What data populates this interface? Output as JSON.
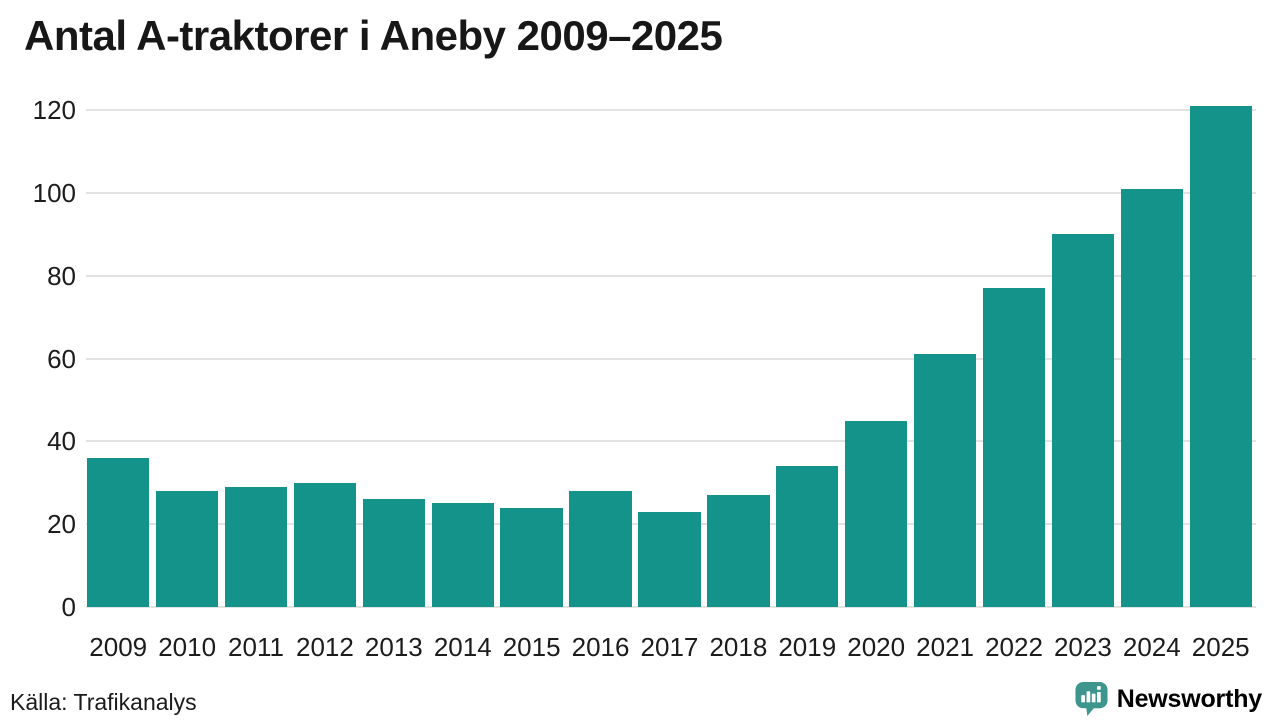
{
  "title": "Antal A-traktorer i Aneby 2009–2025",
  "source": "Källa: Trafikanalys",
  "logo": {
    "text": "Newsworthy",
    "mark_color": "#3e958d",
    "mark_glyph_color": "#ffffff",
    "text_color": "#35938b",
    "mark_icon": "speech-bubble-bar-chart-exclamation"
  },
  "colors": {
    "bar": "#14938a",
    "grid": "#e2e2e2",
    "text": "#1c1c1c",
    "title_text": "#171717"
  },
  "chart_data": {
    "type": "bar",
    "title": "Antal A-traktorer i Aneby 2009–2025",
    "categories": [
      "2009",
      "2010",
      "2011",
      "2012",
      "2013",
      "2014",
      "2015",
      "2016",
      "2017",
      "2018",
      "2019",
      "2020",
      "2021",
      "2022",
      "2023",
      "2024",
      "2025"
    ],
    "values": [
      36,
      28,
      29,
      30,
      26,
      25,
      24,
      28,
      23,
      27,
      34,
      45,
      61,
      77,
      90,
      101,
      121
    ],
    "xlabel": "",
    "ylabel": "",
    "ylim": [
      0,
      120
    ],
    "yticks": [
      0,
      20,
      40,
      60,
      80,
      100,
      120
    ],
    "grid": true,
    "legend": false,
    "bar_color": "#14938a"
  }
}
